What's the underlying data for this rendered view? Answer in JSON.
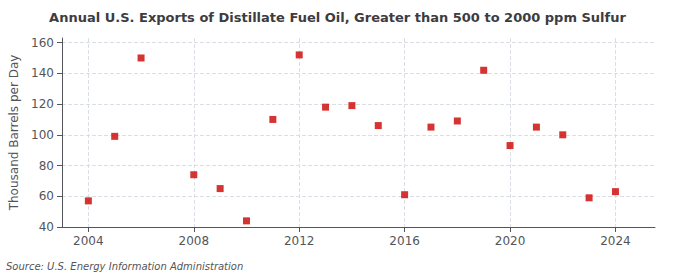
{
  "chart_data": {
    "type": "scatter",
    "title": "Annual U.S. Exports of Distillate Fuel Oil, Greater than 500 to 2000 ppm Sulfur",
    "ylabel": "Thousand Barrels per Day",
    "source": "Source: U.S. Energy Information Administration",
    "x": [
      2004,
      2005,
      2006,
      2008,
      2009,
      2010,
      2011,
      2012,
      2013,
      2014,
      2015,
      2016,
      2017,
      2018,
      2019,
      2020,
      2021,
      2022,
      2023,
      2024
    ],
    "values": [
      57,
      99,
      150,
      74,
      65,
      44,
      110,
      152,
      118,
      119,
      106,
      61,
      105,
      109,
      142,
      93,
      105,
      100,
      59,
      63
    ],
    "color": "#cc0000",
    "marker": "square",
    "xlim": [
      2003.0,
      2025.5
    ],
    "ylim": [
      40,
      163
    ],
    "xticks": [
      2004,
      2008,
      2012,
      2016,
      2020,
      2024
    ],
    "yticks": [
      40,
      60,
      80,
      100,
      120,
      140,
      160
    ],
    "grid": true
  }
}
